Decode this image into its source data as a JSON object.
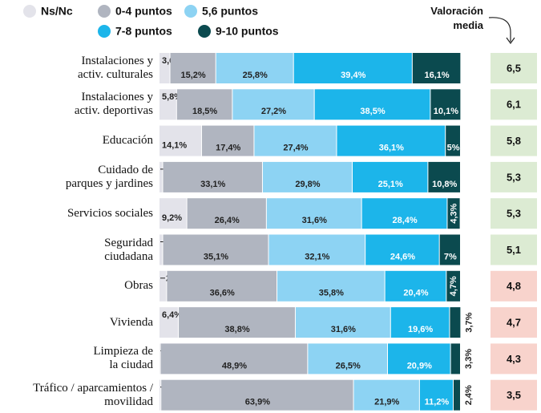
{
  "chart_data": {
    "type": "bar",
    "orientation": "horizontal",
    "stacked": true,
    "categories": [
      "Instalaciones y\nactiv. culturales",
      "Instalaciones y\nactiv. deportivas",
      "Educación",
      "Cuidado de\nparques y jardines",
      "Servicios sociales",
      "Seguridad\nciudadana",
      "Obras",
      "Vivienda",
      "Limpieza de\nla ciudad",
      "Tráfico / aparcamientos /\nmovilidad"
    ],
    "xlim": [
      0,
      100
    ],
    "series": [
      {
        "name": "Ns/Nc",
        "color": "#e3e3ea",
        "values": [
          3.6,
          5.8,
          14.1,
          1.2,
          9.2,
          1.2,
          2.5,
          6.4,
          0.4,
          0.6
        ],
        "value_labels": [
          "3,6%",
          "5,8%",
          "14,1%",
          "1,2%",
          "9,2%",
          "1,2%",
          "2,5%",
          "6,4%",
          "0,4%",
          "0,6%"
        ]
      },
      {
        "name": "0-4 puntos",
        "color": "#b0b5c0",
        "values": [
          15.2,
          18.5,
          17.4,
          33.1,
          26.4,
          35.1,
          36.6,
          38.8,
          48.9,
          63.9
        ],
        "value_labels": [
          "15,2%",
          "18,5%",
          "17,4%",
          "33,1%",
          "26,4%",
          "35,1%",
          "36,6%",
          "38,8%",
          "48,9%",
          "63,9%"
        ]
      },
      {
        "name": "5,6 puntos",
        "color": "#8dd3f3",
        "values": [
          25.8,
          27.2,
          27.4,
          29.8,
          31.6,
          32.1,
          35.8,
          31.6,
          26.5,
          21.9
        ],
        "value_labels": [
          "25,8%",
          "27,2%",
          "27,4%",
          "29,8%",
          "31,6%",
          "32,1%",
          "35,8%",
          "31,6%",
          "26,5%",
          "21,9%"
        ]
      },
      {
        "name": "7-8 puntos",
        "color": "#1cb5ea",
        "values": [
          39.4,
          38.5,
          36.1,
          25.1,
          28.4,
          24.6,
          20.4,
          19.6,
          20.9,
          11.2
        ],
        "value_labels": [
          "39,4%",
          "38,5%",
          "36,1%",
          "25,1%",
          "28,4%",
          "24,6%",
          "20,4%",
          "19,6%",
          "20,9%",
          "11,2%"
        ]
      },
      {
        "name": "9-10 puntos",
        "color": "#0b4a4f",
        "values": [
          16.1,
          10.1,
          5,
          10.8,
          4.3,
          7,
          4.7,
          3.7,
          3.3,
          2.4
        ],
        "value_labels": [
          "16,1%",
          "10,1%",
          "5%",
          "10,8%",
          "4,3%",
          "7%",
          "4,7%",
          "3,7%",
          "3,3%",
          "2,4%"
        ]
      }
    ],
    "media_title": "Valoración\nmedia",
    "media": {
      "values": [
        6.5,
        6.1,
        5.8,
        5.3,
        5.3,
        5.1,
        4.8,
        4.7,
        4.3,
        3.5
      ],
      "value_labels": [
        "6,5",
        "6,1",
        "5,8",
        "5,3",
        "5,3",
        "5,1",
        "4,8",
        "4,7",
        "4,3",
        "3,5"
      ],
      "colors": [
        "#dcebd3",
        "#dcebd3",
        "#dcebd3",
        "#dcebd3",
        "#dcebd3",
        "#dcebd3",
        "#f8d3cc",
        "#f8d3cc",
        "#f8d3cc",
        "#f8d3cc"
      ]
    }
  }
}
